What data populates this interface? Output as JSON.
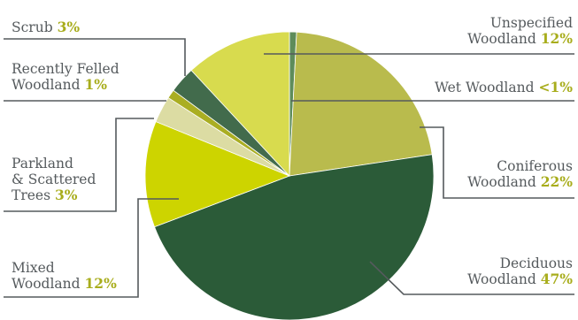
{
  "chart_data": {
    "type": "pie",
    "title": "",
    "slices": [
      {
        "key": "wet",
        "label": "Wet Woodland",
        "value": 0.8,
        "value_label": "<1%",
        "color": "#5e8c5a"
      },
      {
        "key": "coniferous",
        "label": "Coniferous Woodland",
        "value": 22,
        "value_label": "22%",
        "color": "#b9bb4d"
      },
      {
        "key": "deciduous",
        "label": "Deciduous Woodland",
        "value": 47,
        "value_label": "47%",
        "color": "#2b5b38"
      },
      {
        "key": "mixed",
        "label": "Mixed Woodland",
        "value": 12,
        "value_label": "12%",
        "color": "#cdd400"
      },
      {
        "key": "parkland",
        "label": "Parkland & Scattered Trees",
        "value": 3,
        "value_label": "3%",
        "color": "#dcdca3"
      },
      {
        "key": "felled",
        "label": "Recently Felled Woodland",
        "value": 1,
        "value_label": "1%",
        "color": "#aaae22"
      },
      {
        "key": "scrub",
        "label": "Scrub",
        "value": 3,
        "value_label": "3%",
        "color": "#426b4c"
      },
      {
        "key": "unspecified",
        "label": "Unspecified Woodland",
        "value": 12,
        "value_label": "12%",
        "color": "#d8db4e"
      }
    ]
  },
  "labels": {
    "scrub": {
      "line1": "Scrub",
      "pct": "3%"
    },
    "felled": {
      "line1": "Recently Felled",
      "line2": "Woodland",
      "pct": "1%"
    },
    "parkland": {
      "line1": "Parkland",
      "line2": "& Scattered",
      "line3": "Trees",
      "pct": "3%"
    },
    "mixed": {
      "line1": "Mixed",
      "line2": "Woodland",
      "pct": "12%"
    },
    "unspecified": {
      "line1": "Unspecified",
      "line2": "Woodland",
      "pct": "12%"
    },
    "wet": {
      "line1": "Wet Woodland",
      "pct": "<1%"
    },
    "coniferous": {
      "line1": "Coniferous",
      "line2": "Woodland",
      "pct": "22%"
    },
    "deciduous": {
      "line1": "Deciduous",
      "line2": "Woodland",
      "pct": "47%"
    }
  },
  "colors": {
    "leader_line": "#555a5d",
    "percent_text": "#a8ad1c",
    "label_text": "#555a5d"
  }
}
